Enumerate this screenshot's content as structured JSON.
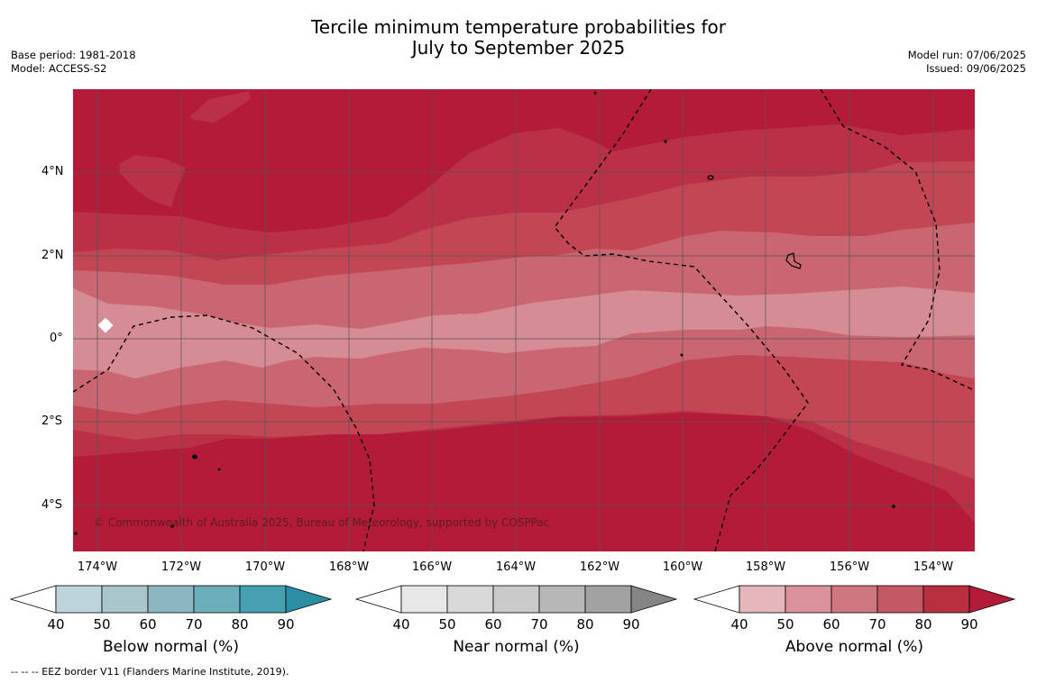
{
  "title": {
    "line1": "Tercile minimum temperature probabilities for",
    "line2": "July to September 2025"
  },
  "meta": {
    "base_period": "Base period: 1981-2018",
    "model": "Model: ACCESS-S2",
    "model_run": "Model run: 07/06/2025",
    "issued": "Issued: 09/06/2025"
  },
  "map": {
    "lat_labels": [
      "4°N",
      "2°N",
      "0°",
      "2°S",
      "4°S"
    ],
    "lon_labels": [
      "174°W",
      "172°W",
      "170°W",
      "168°W",
      "166°W",
      "164°W",
      "162°W",
      "160°W",
      "158°W",
      "156°W",
      "154°W"
    ],
    "copyright": "© Commonwealth of Australia 2025, Bureau of Meteorology, supported by COSPPac",
    "category_colors": [
      "#b31b38",
      "#ba3047",
      "#c24654",
      "#ca6572",
      "#d68c95"
    ]
  },
  "colorbars": [
    {
      "title": "Below normal (%)",
      "ticks": [
        "40",
        "50",
        "60",
        "70",
        "80",
        "90"
      ],
      "colors": [
        "#ffffff",
        "#bed4db",
        "#a8c6cc",
        "#8bb7c2",
        "#6caeba",
        "#47a0b0",
        "#2b8fa3"
      ]
    },
    {
      "title": "Near normal (%)",
      "ticks": [
        "40",
        "50",
        "60",
        "70",
        "80",
        "90"
      ],
      "colors": [
        "#ffffff",
        "#e7e7e7",
        "#d9d9d9",
        "#cacaca",
        "#b7b7b7",
        "#a2a2a2",
        "#858585"
      ]
    },
    {
      "title": "Above normal (%)",
      "ticks": [
        "40",
        "50",
        "60",
        "70",
        "80",
        "90"
      ],
      "colors": [
        "#ffffff",
        "#e4b7bd",
        "#d9929c",
        "#cd7781",
        "#c45864",
        "#b8303f",
        "#b31b38"
      ]
    }
  ],
  "footnote": "-- -- -- EEZ border V11 (Flanders Marine Institute, 2019)."
}
